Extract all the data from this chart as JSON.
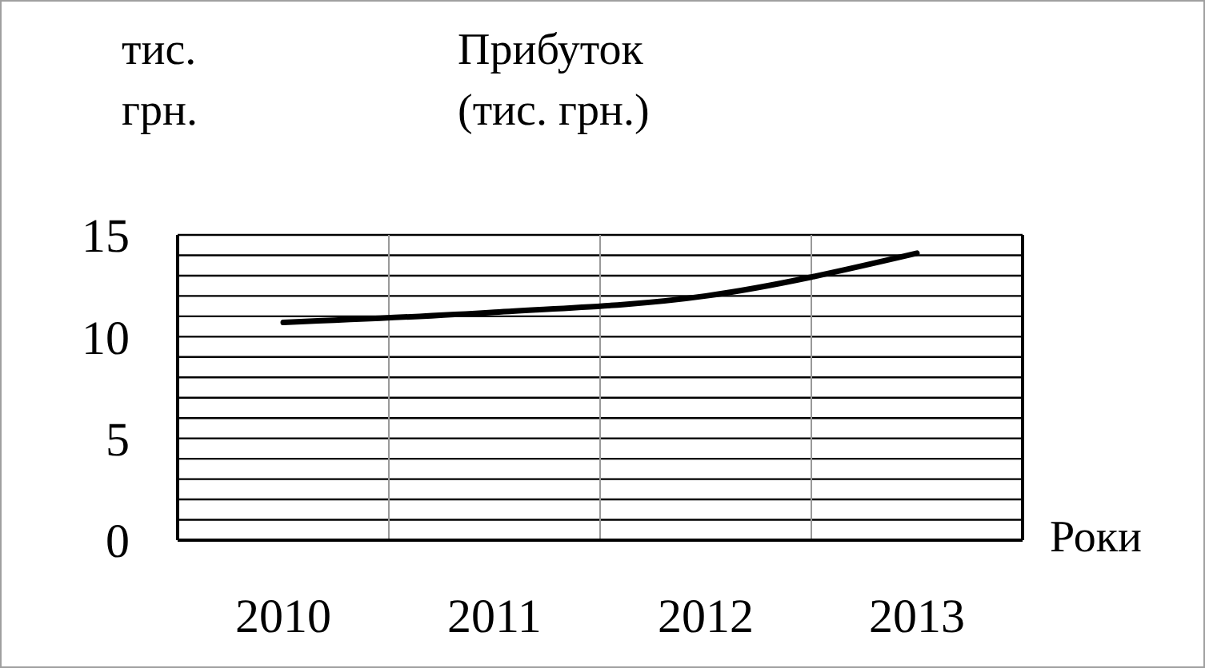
{
  "chart_data": {
    "type": "line",
    "title": "Прибуток (тис. грн.)",
    "ylabel": "тис. грн.",
    "xlabel": "Роки",
    "categories": [
      "2010",
      "2011",
      "2012",
      "2013"
    ],
    "series": [
      {
        "color": "#000000",
        "values": [
          10.7,
          11.2,
          12.0,
          14.1
        ]
      }
    ],
    "ylim": [
      0,
      15
    ],
    "yticks": [
      0,
      {
        "value": 1,
        "label": null
      },
      {
        "value": 2,
        "label": null
      },
      {
        "value": 3,
        "label": null
      },
      {
        "value": 4,
        "label": null
      },
      5,
      {
        "value": 6,
        "label": null
      },
      {
        "value": 7,
        "label": null
      },
      {
        "value": 8,
        "label": null
      },
      {
        "value": 9,
        "label": null
      },
      10,
      {
        "value": 11,
        "label": null
      },
      {
        "value": 12,
        "label": null
      },
      {
        "value": 13,
        "label": null
      },
      {
        "value": 14,
        "label": null
      },
      15
    ],
    "grid": true,
    "marker": "none",
    "line_style": "solid"
  }
}
